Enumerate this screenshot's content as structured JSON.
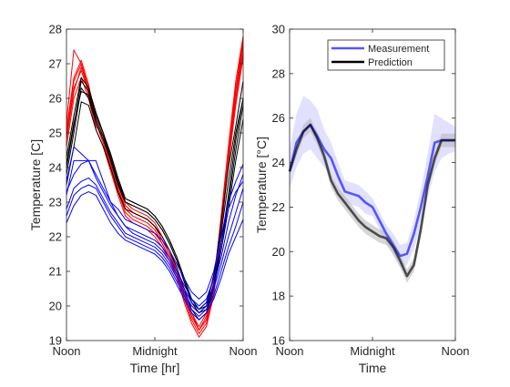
{
  "chart_data": [
    {
      "type": "line",
      "xlabel": "Time [hr]",
      "ylabel": "Temperature [C]",
      "xlim": [
        0,
        12
      ],
      "ylim": [
        19,
        28
      ],
      "x_ticks": [
        {
          "value": 0,
          "label": "Noon"
        },
        {
          "value": 6,
          "label": "Midnight"
        },
        {
          "value": 12,
          "label": "Noon"
        }
      ],
      "y_ticks": [
        19,
        20,
        21,
        22,
        23,
        24,
        25,
        26,
        27,
        28
      ],
      "grid": false,
      "colors": {
        "red": "#ff0000",
        "black": "#000000",
        "blue": "#0000ff"
      },
      "x": [
        0,
        0.5,
        1,
        1.5,
        2,
        2.5,
        3,
        3.5,
        4,
        4.5,
        5,
        5.5,
        6,
        6.5,
        7,
        7.5,
        8,
        8.5,
        9,
        9.5,
        10,
        10.5,
        11,
        11.5,
        12
      ],
      "series": [
        {
          "color": "red",
          "values": [
            25.0,
            26.5,
            27.0,
            26.3,
            25.5,
            25.0,
            24.3,
            23.6,
            23.0,
            22.8,
            22.7,
            22.6,
            22.4,
            22.0,
            21.6,
            21.0,
            20.4,
            19.8,
            19.3,
            19.6,
            20.6,
            22.6,
            24.6,
            26.5,
            27.8
          ]
        },
        {
          "color": "red",
          "values": [
            25.3,
            27.4,
            27.0,
            26.1,
            25.3,
            24.8,
            24.1,
            23.4,
            22.8,
            22.6,
            22.5,
            22.4,
            22.2,
            21.8,
            21.4,
            20.9,
            20.2,
            19.6,
            19.2,
            19.5,
            20.4,
            22.3,
            24.3,
            26.2,
            27.6
          ]
        },
        {
          "color": "red",
          "values": [
            24.9,
            26.3,
            26.8,
            26.2,
            25.2,
            24.9,
            24.2,
            23.5,
            22.9,
            22.7,
            22.6,
            22.5,
            22.3,
            21.9,
            21.5,
            21.0,
            20.3,
            19.7,
            19.3,
            19.6,
            20.5,
            22.4,
            24.4,
            26.0,
            27.3
          ]
        },
        {
          "color": "red",
          "values": [
            24.6,
            26.0,
            26.6,
            26.0,
            25.1,
            24.6,
            23.9,
            23.2,
            22.6,
            22.4,
            22.3,
            22.2,
            22.0,
            21.7,
            21.3,
            20.8,
            20.1,
            19.5,
            19.1,
            19.4,
            20.3,
            22.1,
            24.2,
            26.0,
            27.5
          ]
        },
        {
          "color": "red",
          "values": [
            25.1,
            26.6,
            27.1,
            26.4,
            25.4,
            24.9,
            24.2,
            23.5,
            22.9,
            22.7,
            22.6,
            22.5,
            22.3,
            21.9,
            21.5,
            21.0,
            20.4,
            19.8,
            19.4,
            19.8,
            20.7,
            22.5,
            24.5,
            26.3,
            27.7
          ]
        },
        {
          "color": "red",
          "values": [
            24.8,
            26.2,
            26.9,
            26.3,
            25.3,
            24.7,
            24.0,
            23.3,
            22.7,
            22.5,
            22.4,
            22.3,
            22.1,
            21.8,
            21.4,
            20.9,
            20.3,
            19.7,
            19.3,
            19.7,
            20.6,
            22.2,
            24.1,
            25.8,
            27.2
          ]
        },
        {
          "color": "black",
          "values": [
            24.0,
            25.2,
            26.5,
            26.2,
            25.5,
            25.0,
            24.3,
            23.6,
            23.1,
            23.0,
            22.9,
            22.8,
            22.6,
            22.3,
            21.9,
            21.4,
            20.8,
            20.2,
            19.9,
            20.0,
            20.6,
            21.8,
            23.0,
            24.5,
            25.8
          ]
        },
        {
          "color": "black",
          "values": [
            23.8,
            25.0,
            26.3,
            26.0,
            25.3,
            24.8,
            24.2,
            23.5,
            23.0,
            22.9,
            22.8,
            22.7,
            22.5,
            22.2,
            21.8,
            21.3,
            20.7,
            20.1,
            19.8,
            19.9,
            20.5,
            21.6,
            22.8,
            24.2,
            25.4
          ]
        },
        {
          "color": "black",
          "values": [
            24.3,
            25.5,
            26.6,
            26.3,
            25.6,
            25.0,
            24.4,
            23.7,
            23.1,
            23.0,
            22.9,
            22.8,
            22.6,
            22.3,
            21.9,
            21.4,
            20.8,
            20.2,
            19.9,
            20.1,
            20.8,
            22.4,
            24.0,
            25.2,
            26.5
          ]
        },
        {
          "color": "black",
          "values": [
            23.5,
            24.6,
            25.9,
            25.8,
            25.1,
            24.6,
            24.0,
            23.3,
            22.8,
            22.7,
            22.6,
            22.5,
            22.3,
            22.0,
            21.6,
            21.1,
            20.5,
            19.9,
            19.6,
            19.8,
            20.5,
            21.8,
            23.2,
            24.8,
            26.0
          ]
        },
        {
          "color": "black",
          "values": [
            24.1,
            25.3,
            26.2,
            26.1,
            25.4,
            24.9,
            24.3,
            23.6,
            23.0,
            22.9,
            22.8,
            22.7,
            22.5,
            22.2,
            21.8,
            21.3,
            20.7,
            20.1,
            19.8,
            20.0,
            20.9,
            22.1,
            23.6,
            25.0,
            26.0
          ]
        },
        {
          "color": "blue",
          "values": [
            23.6,
            24.6,
            24.4,
            24.2,
            23.8,
            23.4,
            23.0,
            22.8,
            22.5,
            22.4,
            22.3,
            22.2,
            22.1,
            21.9,
            21.6,
            21.2,
            20.8,
            20.4,
            20.2,
            20.4,
            21.0,
            22.0,
            23.0,
            23.6,
            24.1
          ]
        },
        {
          "color": "blue",
          "values": [
            23.2,
            24.2,
            24.2,
            24.2,
            23.7,
            23.3,
            22.9,
            22.6,
            22.3,
            22.2,
            22.1,
            22.0,
            21.9,
            21.7,
            21.4,
            21.0,
            20.6,
            20.2,
            20.0,
            20.2,
            20.8,
            21.8,
            22.8,
            23.3,
            23.6
          ]
        },
        {
          "color": "blue",
          "values": [
            23.3,
            23.8,
            24.1,
            24.2,
            24.2,
            23.6,
            23.0,
            22.6,
            22.3,
            22.1,
            22.0,
            21.9,
            21.8,
            21.6,
            21.3,
            20.9,
            20.5,
            20.1,
            19.9,
            20.1,
            20.6,
            21.4,
            22.4,
            23.2,
            23.8
          ]
        },
        {
          "color": "blue",
          "values": [
            22.8,
            23.4,
            23.6,
            23.7,
            23.5,
            23.1,
            22.7,
            22.4,
            22.1,
            22.0,
            21.9,
            21.8,
            21.7,
            21.5,
            21.2,
            20.8,
            20.4,
            20.0,
            19.8,
            20.0,
            20.5,
            21.2,
            22.0,
            22.7,
            23.4
          ]
        },
        {
          "color": "blue",
          "values": [
            22.6,
            23.2,
            23.4,
            23.5,
            23.4,
            23.0,
            22.6,
            22.3,
            22.0,
            21.9,
            21.8,
            21.7,
            21.6,
            21.4,
            21.1,
            20.7,
            20.3,
            19.9,
            19.7,
            19.9,
            20.3,
            21.0,
            21.7,
            22.3,
            23.0
          ]
        },
        {
          "color": "blue",
          "values": [
            22.4,
            22.9,
            23.2,
            23.3,
            23.2,
            22.8,
            22.4,
            22.1,
            21.9,
            21.8,
            21.7,
            21.6,
            21.5,
            21.3,
            21.0,
            20.6,
            20.2,
            19.8,
            19.6,
            19.8,
            20.2,
            20.8,
            21.5,
            22.0,
            22.5
          ]
        }
      ]
    },
    {
      "type": "line",
      "xlabel": "Time",
      "ylabel": "Temperature [°C]",
      "xlim": [
        0,
        12
      ],
      "ylim": [
        16,
        30
      ],
      "x_ticks": [
        {
          "value": 0,
          "label": "Noon"
        },
        {
          "value": 6,
          "label": "Midnight"
        },
        {
          "value": 12,
          "label": "Noon"
        }
      ],
      "y_ticks": [
        16,
        18,
        20,
        22,
        24,
        26,
        28,
        30
      ],
      "grid": false,
      "legend_position": "top-right",
      "x": [
        0,
        0.5,
        1,
        1.5,
        2,
        2.5,
        3,
        3.5,
        4,
        4.5,
        5,
        5.5,
        6,
        6.5,
        7,
        7.5,
        8,
        8.5,
        9,
        9.5,
        10,
        10.5,
        11,
        11.5,
        12
      ],
      "series": [
        {
          "name": "Measurement",
          "color": "#5555ff",
          "values": [
            23.6,
            24.9,
            25.4,
            25.7,
            25.2,
            24.6,
            24.2,
            23.4,
            22.7,
            22.6,
            22.5,
            22.2,
            22.0,
            21.4,
            20.8,
            20.3,
            19.8,
            19.9,
            20.8,
            22.0,
            23.4,
            24.9,
            25.0,
            25.0,
            25.0
          ],
          "band_upper": [
            24.6,
            26.2,
            27.0,
            26.8,
            26.4,
            25.5,
            24.9,
            24.0,
            23.2,
            23.1,
            23.0,
            22.7,
            22.4,
            21.8,
            21.2,
            20.8,
            20.3,
            20.4,
            21.4,
            22.8,
            24.4,
            26.2,
            26.0,
            25.8,
            25.6
          ],
          "band_lower": [
            22.8,
            23.8,
            24.4,
            24.6,
            24.2,
            23.8,
            23.5,
            22.8,
            22.2,
            22.1,
            22.0,
            21.7,
            21.6,
            21.0,
            20.4,
            19.8,
            19.3,
            19.4,
            20.1,
            21.1,
            22.4,
            23.6,
            24.2,
            24.4,
            24.5
          ]
        },
        {
          "name": "Prediction",
          "color": "#000000",
          "values": [
            23.6,
            24.6,
            25.4,
            25.7,
            25.1,
            24.3,
            23.2,
            22.6,
            22.2,
            21.8,
            21.4,
            21.1,
            20.9,
            20.7,
            20.6,
            20.2,
            19.6,
            18.9,
            19.4,
            21.0,
            23.0,
            24.2,
            25.0,
            25.0,
            25.0
          ],
          "band_upper": [
            23.8,
            24.9,
            25.7,
            26.0,
            25.4,
            24.6,
            23.5,
            22.9,
            22.5,
            22.1,
            21.7,
            21.4,
            21.2,
            21.0,
            20.9,
            20.5,
            19.9,
            19.2,
            19.7,
            21.3,
            23.3,
            24.5,
            25.3,
            25.3,
            25.3
          ],
          "band_lower": [
            23.4,
            24.3,
            25.1,
            25.4,
            24.8,
            24.0,
            22.9,
            22.3,
            21.9,
            21.5,
            21.1,
            20.8,
            20.6,
            20.4,
            20.3,
            19.9,
            19.3,
            18.6,
            19.1,
            20.7,
            22.7,
            23.9,
            24.7,
            24.7,
            24.7
          ]
        }
      ]
    }
  ]
}
